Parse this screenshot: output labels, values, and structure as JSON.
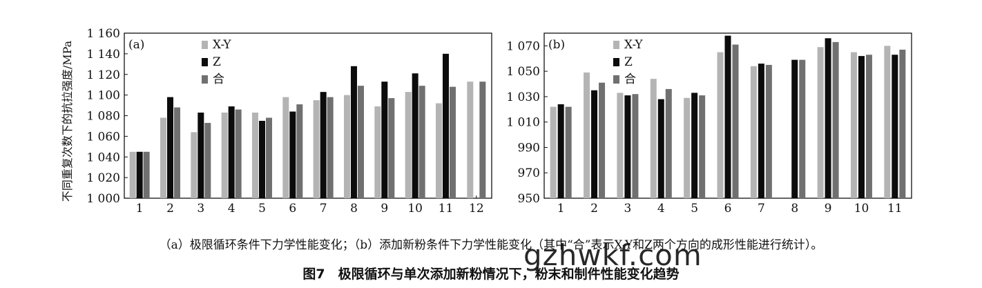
{
  "colors": {
    "xy": "#b4b4b4",
    "z": "#0c0c0c",
    "combined": "#707070",
    "axis": "#111111"
  },
  "chart_data": [
    {
      "type": "bar",
      "panel_label": "(a)",
      "ylabel": "不同重复次数下的抗拉强度/MPa",
      "ylim": [
        1000,
        1160
      ],
      "yticks": [
        1000,
        1020,
        1040,
        1060,
        1080,
        1100,
        1120,
        1140,
        1160
      ],
      "ytick_labels": [
        "1 000",
        "1 020",
        "1 040",
        "1 060",
        "1 080",
        "1 100",
        "1 120",
        "1 140",
        "1 160"
      ],
      "categories": [
        "1",
        "2",
        "3",
        "4",
        "5",
        "6",
        "7",
        "8",
        "9",
        "10",
        "11",
        "12"
      ],
      "legend_position": "top-left",
      "series": [
        {
          "name": "X-Y",
          "color_key": "xy",
          "values": [
            1045,
            1078,
            1064,
            1083,
            1083,
            1098,
            1095,
            1100,
            1089,
            1103,
            1092,
            null
          ]
        },
        {
          "name": "Z",
          "color_key": "z",
          "values": [
            1045,
            1098,
            1083,
            1089,
            1075,
            1084,
            1103,
            1128,
            1113,
            1121,
            1140,
            null
          ]
        },
        {
          "name": "合",
          "color_key": "combined",
          "values": [
            1045,
            1088,
            1073,
            1086,
            1078,
            1091,
            1098,
            1109,
            1097,
            1109,
            1108,
            null
          ]
        }
      ],
      "extra_bars": [
        {
          "category": "12",
          "values": [
            1113,
            1113
          ],
          "color_keys": [
            "xy",
            "combined"
          ]
        }
      ]
    },
    {
      "type": "bar",
      "panel_label": "(b)",
      "ylabel": "",
      "ylim": [
        950,
        1080
      ],
      "yticks": [
        950,
        970,
        990,
        1010,
        1030,
        1050,
        1070
      ],
      "ytick_labels": [
        "950",
        "970",
        "990",
        "1 010",
        "1 030",
        "1 050",
        "1 070"
      ],
      "categories": [
        "1",
        "2",
        "3",
        "4",
        "5",
        "6",
        "7",
        "8",
        "9",
        "10",
        "11"
      ],
      "legend_position": "top-left",
      "series": [
        {
          "name": "X-Y",
          "color_key": "xy",
          "values": [
            1022,
            1049,
            1033,
            1044,
            1029,
            1065,
            1054,
            null,
            1069,
            1065,
            1070
          ]
        },
        {
          "name": "Z",
          "color_key": "z",
          "values": [
            1024,
            1035,
            1031,
            1028,
            1033,
            1078,
            1056,
            1059,
            1076,
            1062,
            1063
          ]
        },
        {
          "name": "合",
          "color_key": "combined",
          "values": [
            1022,
            1041,
            1032,
            1036,
            1031,
            1071,
            1055,
            1059,
            1073,
            1063,
            1067
          ]
        }
      ]
    }
  ],
  "caption": {
    "subcaption": "（a）极限循环条件下力学性能变化；（b）添加新粉条件下力学性能变化（其中“合”表示X-Y和Z两个方向的成形性能进行统计）。",
    "figure": "图7　极限循环与单次添加新粉情况下，粉末和制件性能变化趋势"
  },
  "watermark": "gzhwkf.com"
}
